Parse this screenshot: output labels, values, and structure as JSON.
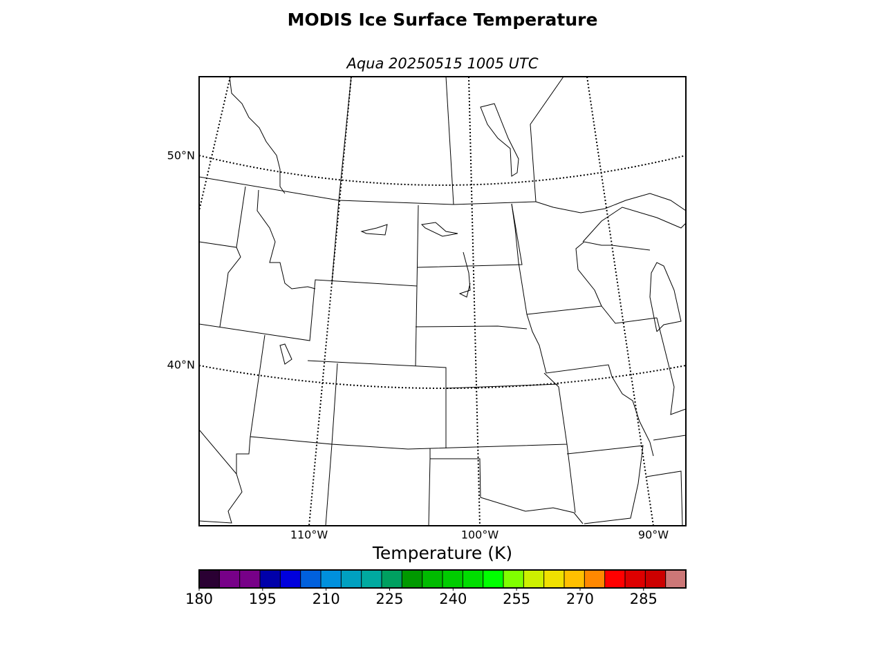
{
  "title": "MODIS Ice Surface Temperature",
  "subtitle": "Aqua 20250515 1005 UTC",
  "map": {
    "lat_labels": [
      "50°N",
      "40°N"
    ],
    "lon_labels": [
      "110°W",
      "100°W",
      "90°W"
    ]
  },
  "colorbar": {
    "label": "Temperature (K)",
    "lim": [
      180,
      295
    ],
    "ticks": [
      180,
      195,
      210,
      225,
      240,
      255,
      270,
      285
    ],
    "colors": [
      "#2a0033",
      "#770088",
      "#770088",
      "#0000aa",
      "#0000dd",
      "#0060dd",
      "#0090dd",
      "#00a0c0",
      "#00aaa0",
      "#00a060",
      "#009900",
      "#00bb00",
      "#00cc00",
      "#00dd00",
      "#00ff00",
      "#80ff00",
      "#ccf000",
      "#f0e000",
      "#ffc000",
      "#ff8800",
      "#ff0000",
      "#dd0000",
      "#cc0000",
      "#cc7777"
    ]
  }
}
